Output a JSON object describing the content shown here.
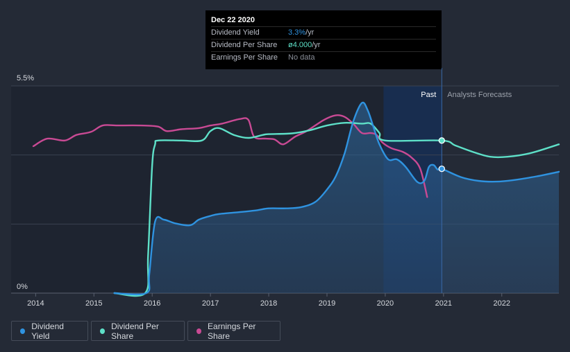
{
  "tooltip": {
    "date": "Dec 22 2020",
    "rows": [
      {
        "label": "Dividend Yield",
        "value": "3.3%",
        "unit": " /yr"
      },
      {
        "label": "Dividend Per Share",
        "value": "ø4.000",
        "unit": " /yr"
      },
      {
        "label": "Earnings Per Share",
        "value": "No data",
        "unit": ""
      }
    ]
  },
  "region_labels": {
    "past": "Past",
    "forecast": "Analysts Forecasts"
  },
  "legend": [
    {
      "label": "Dividend Yield",
      "color": "#2f93e0"
    },
    {
      "label": "Dividend Per Share",
      "color": "#5ee0c8"
    },
    {
      "label": "Earnings Per Share",
      "color": "#c94a94"
    }
  ],
  "chart_data": {
    "type": "line",
    "title": "",
    "xlabel": "",
    "ylabel": "",
    "x_ticks": [
      "2014",
      "2015",
      "2016",
      "2017",
      "2018",
      "2019",
      "2020",
      "2021",
      "2022"
    ],
    "y_ticks": [
      "0%",
      "5.5%"
    ],
    "xlim": [
      2013.96,
      2022.98
    ],
    "ylim": [
      0,
      5.5
    ],
    "past_end": 2020.97,
    "shaded_start": 2019.97,
    "colors": {
      "yield": "#2f93e0",
      "dps": "#5ee0c8",
      "eps": "#c94a94"
    },
    "series": [
      {
        "name": "Dividend Yield",
        "key": "yield",
        "points": [
          [
            2015.35,
            0.0
          ],
          [
            2015.9,
            0.0
          ],
          [
            2015.95,
            0.5
          ],
          [
            2016.05,
            1.9
          ],
          [
            2016.2,
            1.95
          ],
          [
            2016.4,
            1.85
          ],
          [
            2016.65,
            1.8
          ],
          [
            2016.8,
            1.95
          ],
          [
            2017.0,
            2.05
          ],
          [
            2017.15,
            2.1
          ],
          [
            2017.5,
            2.15
          ],
          [
            2017.8,
            2.2
          ],
          [
            2018.0,
            2.25
          ],
          [
            2018.3,
            2.25
          ],
          [
            2018.55,
            2.28
          ],
          [
            2018.8,
            2.42
          ],
          [
            2019.0,
            2.75
          ],
          [
            2019.15,
            3.1
          ],
          [
            2019.3,
            3.7
          ],
          [
            2019.45,
            4.55
          ],
          [
            2019.6,
            5.05
          ],
          [
            2019.7,
            4.85
          ],
          [
            2019.8,
            4.4
          ],
          [
            2019.9,
            3.95
          ],
          [
            2020.05,
            3.55
          ],
          [
            2020.2,
            3.55
          ],
          [
            2020.35,
            3.35
          ],
          [
            2020.55,
            2.95
          ],
          [
            2020.67,
            2.98
          ],
          [
            2020.75,
            3.35
          ],
          [
            2020.83,
            3.4
          ],
          [
            2020.9,
            3.28
          ],
          [
            2020.97,
            3.3
          ],
          [
            2021.3,
            3.08
          ],
          [
            2021.6,
            2.98
          ],
          [
            2021.9,
            2.96
          ],
          [
            2022.2,
            3.0
          ],
          [
            2022.6,
            3.1
          ],
          [
            2022.98,
            3.22
          ]
        ]
      },
      {
        "name": "Dividend Per Share",
        "key": "dps",
        "points": [
          [
            2015.35,
            0.0
          ],
          [
            2015.88,
            0.0
          ],
          [
            2015.93,
            1.0
          ],
          [
            2016.0,
            3.4
          ],
          [
            2016.05,
            3.95
          ],
          [
            2016.1,
            4.05
          ],
          [
            2016.5,
            4.05
          ],
          [
            2016.85,
            4.05
          ],
          [
            2017.0,
            4.3
          ],
          [
            2017.15,
            4.38
          ],
          [
            2017.4,
            4.2
          ],
          [
            2017.65,
            4.12
          ],
          [
            2017.9,
            4.2
          ],
          [
            2018.0,
            4.22
          ],
          [
            2018.4,
            4.24
          ],
          [
            2018.7,
            4.32
          ],
          [
            2019.0,
            4.45
          ],
          [
            2019.3,
            4.52
          ],
          [
            2019.6,
            4.5
          ],
          [
            2019.75,
            4.5
          ],
          [
            2019.9,
            4.25
          ],
          [
            2020.0,
            4.05
          ],
          [
            2020.97,
            4.05
          ],
          [
            2021.2,
            3.92
          ],
          [
            2021.5,
            3.75
          ],
          [
            2021.8,
            3.62
          ],
          [
            2022.1,
            3.62
          ],
          [
            2022.5,
            3.72
          ],
          [
            2022.98,
            3.95
          ]
        ]
      },
      {
        "name": "Earnings Per Share",
        "key": "eps",
        "points": [
          [
            2013.96,
            3.9
          ],
          [
            2014.2,
            4.1
          ],
          [
            2014.5,
            4.05
          ],
          [
            2014.7,
            4.2
          ],
          [
            2014.95,
            4.28
          ],
          [
            2015.15,
            4.45
          ],
          [
            2015.4,
            4.45
          ],
          [
            2015.8,
            4.45
          ],
          [
            2016.1,
            4.42
          ],
          [
            2016.25,
            4.3
          ],
          [
            2016.5,
            4.35
          ],
          [
            2016.8,
            4.38
          ],
          [
            2017.0,
            4.45
          ],
          [
            2017.2,
            4.5
          ],
          [
            2017.5,
            4.62
          ],
          [
            2017.65,
            4.6
          ],
          [
            2017.75,
            4.15
          ],
          [
            2017.95,
            4.1
          ],
          [
            2018.1,
            4.08
          ],
          [
            2018.25,
            3.95
          ],
          [
            2018.45,
            4.15
          ],
          [
            2018.65,
            4.3
          ],
          [
            2018.95,
            4.6
          ],
          [
            2019.15,
            4.72
          ],
          [
            2019.3,
            4.68
          ],
          [
            2019.45,
            4.5
          ],
          [
            2019.6,
            4.25
          ],
          [
            2019.75,
            4.25
          ],
          [
            2019.85,
            4.2
          ],
          [
            2019.95,
            4.0
          ],
          [
            2020.1,
            3.85
          ],
          [
            2020.3,
            3.75
          ],
          [
            2020.45,
            3.6
          ],
          [
            2020.6,
            3.3
          ],
          [
            2020.72,
            2.55
          ]
        ]
      }
    ],
    "markers": [
      {
        "series": "yield",
        "x": 2020.97,
        "y": 3.3
      },
      {
        "series": "dps",
        "x": 2020.97,
        "y": 4.05
      }
    ]
  }
}
